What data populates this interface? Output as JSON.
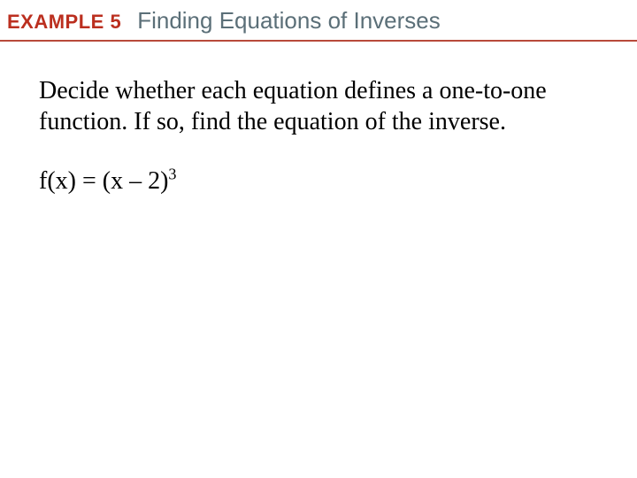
{
  "header": {
    "example_label": "EXAMPLE 5",
    "example_label_color": "#bb2f1f",
    "title": "Finding Equations of Inverses",
    "title_color": "#5b6f78",
    "underline_color": "#b84a3a"
  },
  "body": {
    "problem_text": "Decide whether each equation defines a one-to-one function.   If so, find the equation of the inverse.",
    "equation_prefix": "f(x) = (x – 2)",
    "equation_exponent": "3",
    "text_color": "#000000",
    "font_size_pt": 21
  },
  "background_color": "#ffffff"
}
